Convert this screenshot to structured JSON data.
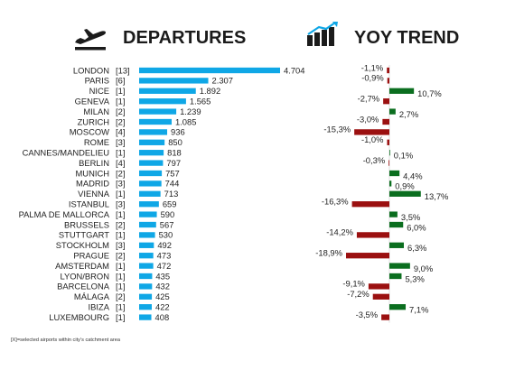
{
  "headers": {
    "departures": "DEPARTURES",
    "yoy": "YOY TREND"
  },
  "icons": {
    "departures": "airplane-takeoff-icon",
    "yoy": "bar-trend-up-icon"
  },
  "colors": {
    "departures_bar": "#0fa7e6",
    "yoy_positive": "#0b6e1f",
    "yoy_negative": "#9b1010",
    "zero_line": "#c9c9c9"
  },
  "footnote": "[X]=selected airports within city’s catchment area",
  "chart_data": [
    {
      "type": "bar",
      "orientation": "horizontal",
      "title": "DEPARTURES",
      "categories": [
        "LONDON",
        "PARIS",
        "NICE",
        "GENEVA",
        "MILAN",
        "ZURICH",
        "MOSCOW",
        "ROME",
        "CANNES/MANDELIEU",
        "BERLIN",
        "MUNICH",
        "MADRID",
        "VIENNA",
        "ISTANBUL",
        "PALMA DE MALLORCA",
        "BRUSSELS",
        "STUTTGART",
        "STOCKHOLM",
        "PRAGUE",
        "AMSTERDAM",
        "LYON/BRON",
        "BARCELONA",
        "MÁLAGA",
        "IBIZA",
        "LUXEMBOURG"
      ],
      "airport_counts": [
        "[13]",
        "[6]",
        "[1]",
        "[1]",
        "[2]",
        "[2]",
        "[4]",
        "[3]",
        "[1]",
        "[4]",
        "[2]",
        "[3]",
        "[1]",
        "[3]",
        "[1]",
        "[2]",
        "[1]",
        "[3]",
        "[2]",
        "[1]",
        "[1]",
        "[1]",
        "[2]",
        "[1]",
        "[1]"
      ],
      "values": [
        4704,
        2307,
        1892,
        1565,
        1239,
        1085,
        936,
        850,
        818,
        797,
        757,
        744,
        713,
        659,
        590,
        567,
        530,
        492,
        473,
        472,
        435,
        432,
        425,
        422,
        408
      ],
      "value_labels": [
        "4.704",
        "2.307",
        "1.892",
        "1.565",
        "1.239",
        "1.085",
        "936",
        "850",
        "818",
        "797",
        "757",
        "744",
        "713",
        "659",
        "590",
        "567",
        "530",
        "492",
        "473",
        "472",
        "435",
        "432",
        "425",
        "422",
        "408"
      ],
      "xlim": [
        0,
        4704
      ]
    },
    {
      "type": "bar",
      "orientation": "horizontal",
      "title": "YOY TREND",
      "categories": [
        "LONDON",
        "PARIS",
        "NICE",
        "GENEVA",
        "MILAN",
        "ZURICH",
        "MOSCOW",
        "ROME",
        "CANNES/MANDELIEU",
        "BERLIN",
        "MUNICH",
        "MADRID",
        "VIENNA",
        "ISTANBUL",
        "PALMA DE MALLORCA",
        "BRUSSELS",
        "STUTTGART",
        "STOCKHOLM",
        "PRAGUE",
        "AMSTERDAM",
        "LYON/BRON",
        "BARCELONA",
        "MÁLAGA",
        "IBIZA",
        "LUXEMBOURG"
      ],
      "values": [
        -1.1,
        -0.9,
        10.7,
        -2.7,
        2.7,
        -3.0,
        -15.3,
        -1.0,
        0.1,
        -0.3,
        4.4,
        0.9,
        13.7,
        -16.3,
        3.5,
        6.0,
        -14.2,
        6.3,
        -18.9,
        9.0,
        5.3,
        -9.1,
        -7.2,
        7.1,
        -3.5
      ],
      "value_labels": [
        "-1,1%",
        "-0,9%",
        "10,7%",
        "-2,7%",
        "2,7%",
        "-3,0%",
        "-15,3%",
        "-1,0%",
        "0,1%",
        "-0,3%",
        "4,4%",
        "0,9%",
        "13,7%",
        "-16,3%",
        "3,5%",
        "6,0%",
        "-14,2%",
        "6,3%",
        "-18,9%",
        "9,0%",
        "5,3%",
        "-9,1%",
        "-7,2%",
        "7,1%",
        "-3,5%"
      ],
      "unit": "%",
      "xlim": [
        -18.9,
        18.9
      ]
    }
  ]
}
